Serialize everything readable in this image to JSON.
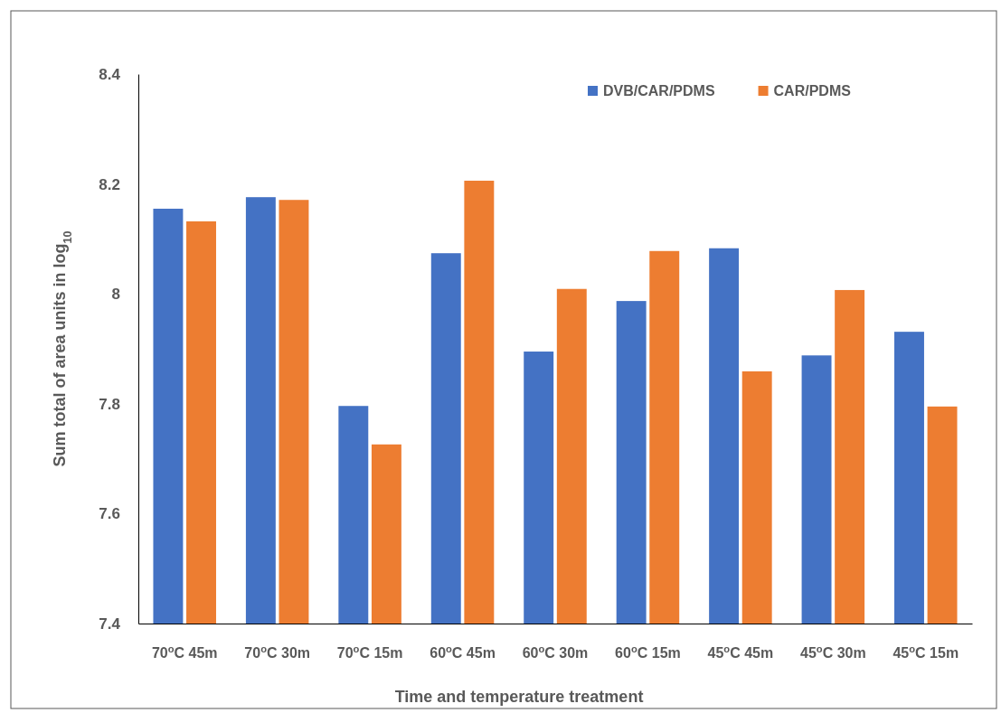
{
  "chart_data": {
    "type": "bar",
    "xlabel": "Time and temperature treatment",
    "ylabel": "Sum total of area units in log$_{10}$",
    "categories": [
      "70$^{o}$C  45m",
      "70$^{o}$C  30m",
      "70$^{o}$C  15m",
      "60$^{o}$C  45m",
      "60$^{o}$C  30m",
      "60$^{o}$C  15m",
      "45$^{o}$C  45m",
      "45$^{o}$C  30m",
      "45$^{o}$C  15m"
    ],
    "series": [
      {
        "name": "DVB/CAR/PDMS",
        "color": "#4472c4",
        "values": [
          8.155,
          8.176,
          7.796,
          8.074,
          7.895,
          7.987,
          8.083,
          7.888,
          7.931
        ]
      },
      {
        "name": "CAR/PDMS",
        "color": "#ed7d31",
        "values": [
          8.132,
          8.171,
          7.726,
          8.206,
          8.009,
          8.078,
          7.859,
          8.007,
          7.795
        ]
      }
    ],
    "ylim": [
      7.4,
      8.4
    ],
    "yticks": [
      7.4,
      7.6,
      7.8,
      8,
      8.2,
      8.4
    ],
    "grid": false,
    "legend": "top right"
  }
}
